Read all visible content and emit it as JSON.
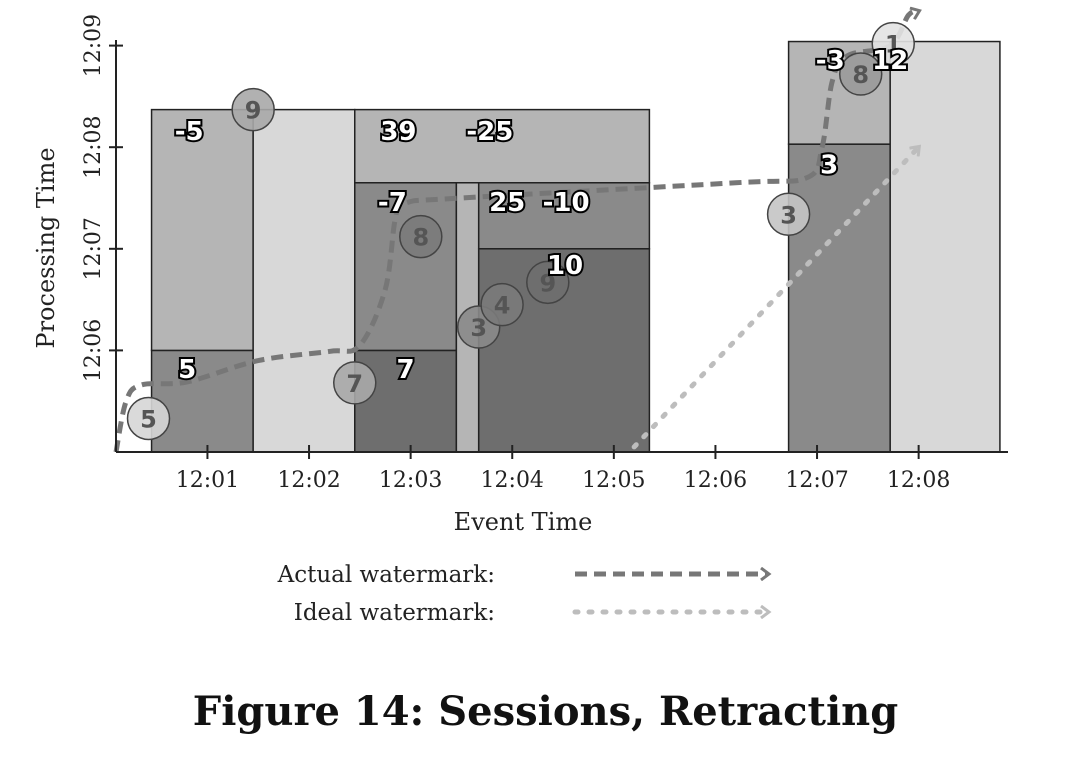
{
  "chart_data": {
    "type": "diagram-chart",
    "xlabel": "Event Time",
    "ylabel": "Processing Time",
    "x_ticks": [
      "12:01",
      "12:02",
      "12:03",
      "12:04",
      "12:05",
      "12:06",
      "12:07",
      "12:08"
    ],
    "y_ticks": [
      "12:06",
      "12:07",
      "12:08",
      "12:09"
    ],
    "x_range_min": [
      0.1,
      8.8
    ],
    "y_range_min": [
      5.0,
      9.0
    ],
    "windows": [
      {
        "x0": 0.45,
        "x1": 1.45,
        "y0": 5.0,
        "y1": 6.0,
        "shade": "#8a8a8a"
      },
      {
        "x0": 0.45,
        "x1": 1.45,
        "y0": 6.0,
        "y1": 8.37,
        "shade": "#b5b5b5"
      },
      {
        "x0": 1.45,
        "x1": 2.45,
        "y0": 5.0,
        "y1": 8.37,
        "shade": "#d8d8d8"
      },
      {
        "x0": 2.45,
        "x1": 5.35,
        "y0": 7.65,
        "y1": 8.37,
        "shade": "#b5b5b5"
      },
      {
        "x0": 2.45,
        "x1": 3.45,
        "y0": 5.0,
        "y1": 6.0,
        "shade": "#6e6e6e"
      },
      {
        "x0": 2.45,
        "x1": 3.45,
        "y0": 6.0,
        "y1": 7.65,
        "shade": "#8a8a8a"
      },
      {
        "x0": 3.45,
        "x1": 3.67,
        "y0": 5.0,
        "y1": 7.65,
        "shade": "#b5b5b5"
      },
      {
        "x0": 3.67,
        "x1": 5.35,
        "y0": 7.0,
        "y1": 7.65,
        "shade": "#8a8a8a"
      },
      {
        "x0": 3.67,
        "x1": 5.35,
        "y0": 5.0,
        "y1": 7.0,
        "shade": "#6e6e6e"
      },
      {
        "x0": 6.72,
        "x1": 7.72,
        "y0": 5.0,
        "y1": 8.03,
        "shade": "#8a8a8a"
      },
      {
        "x0": 6.72,
        "x1": 7.72,
        "y0": 8.03,
        "y1": 9.04,
        "shade": "#b5b5b5"
      },
      {
        "x0": 7.72,
        "x1": 8.8,
        "y0": 5.0,
        "y1": 9.04,
        "shade": "#d8d8d8"
      }
    ],
    "points": [
      {
        "label": "5",
        "x": 0.42,
        "y": 5.33,
        "fill": "#d6d6d6"
      },
      {
        "label": "9",
        "x": 1.45,
        "y": 8.37,
        "fill": "#a8a8a8"
      },
      {
        "label": "7",
        "x": 2.45,
        "y": 5.68,
        "fill": "#a8a8a8"
      },
      {
        "label": "8",
        "x": 3.1,
        "y": 7.12,
        "fill": "#7a7a7a"
      },
      {
        "label": "3",
        "x": 3.67,
        "y": 6.23,
        "fill": "#8a8a8a"
      },
      {
        "label": "4",
        "x": 3.9,
        "y": 6.45,
        "fill": "#7a7a7a"
      },
      {
        "label": "9",
        "x": 4.35,
        "y": 6.67,
        "fill": "#6e6e6e"
      },
      {
        "label": "3",
        "x": 6.72,
        "y": 7.34,
        "fill": "#c4c4c4"
      },
      {
        "label": "8",
        "x": 7.43,
        "y": 8.72,
        "fill": "#9a9a9a"
      },
      {
        "label": "1",
        "x": 7.75,
        "y": 9.02,
        "fill": "#e2e2e2"
      }
    ],
    "annotations": [
      {
        "text": "-5",
        "x": 0.82,
        "y": 8.07
      },
      {
        "text": "5",
        "x": 0.8,
        "y": 5.73
      },
      {
        "text": "39",
        "x": 2.88,
        "y": 8.07
      },
      {
        "text": "-25",
        "x": 3.78,
        "y": 8.07
      },
      {
        "text": "-7",
        "x": 2.82,
        "y": 7.37
      },
      {
        "text": "25",
        "x": 3.95,
        "y": 7.37
      },
      {
        "text": "-10",
        "x": 4.53,
        "y": 7.37
      },
      {
        "text": "10",
        "x": 4.52,
        "y": 6.75
      },
      {
        "text": "7",
        "x": 2.95,
        "y": 5.73
      },
      {
        "text": "-3",
        "x": 7.13,
        "y": 8.77
      },
      {
        "text": "12",
        "x": 7.72,
        "y": 8.77
      },
      {
        "text": "3",
        "x": 7.12,
        "y": 7.74
      }
    ],
    "actual_watermark": [
      [
        0.1,
        5.0
      ],
      [
        0.2,
        5.5
      ],
      [
        0.35,
        5.66
      ],
      [
        0.8,
        5.69
      ],
      [
        1.5,
        5.9
      ],
      [
        2.2,
        5.99
      ],
      [
        2.5,
        6.05
      ],
      [
        2.75,
        6.6
      ],
      [
        2.85,
        7.3
      ],
      [
        2.95,
        7.45
      ],
      [
        3.5,
        7.5
      ],
      [
        6.2,
        7.65
      ],
      [
        6.9,
        7.7
      ],
      [
        7.05,
        8.0
      ],
      [
        7.15,
        8.65
      ],
      [
        7.3,
        8.9
      ],
      [
        7.72,
        9.0
      ],
      [
        7.9,
        9.3
      ],
      [
        8.0,
        9.34
      ]
    ],
    "ideal_watermark": [
      [
        5.2,
        5.05
      ],
      [
        8.0,
        8.0
      ]
    ],
    "legend": [
      {
        "label": "Actual watermark:",
        "style": "dashed",
        "color": "#777777"
      },
      {
        "label": "Ideal watermark:",
        "style": "dotted",
        "color": "#bdbdbd"
      }
    ]
  },
  "caption": "Figure 14: Sessions, Retracting"
}
